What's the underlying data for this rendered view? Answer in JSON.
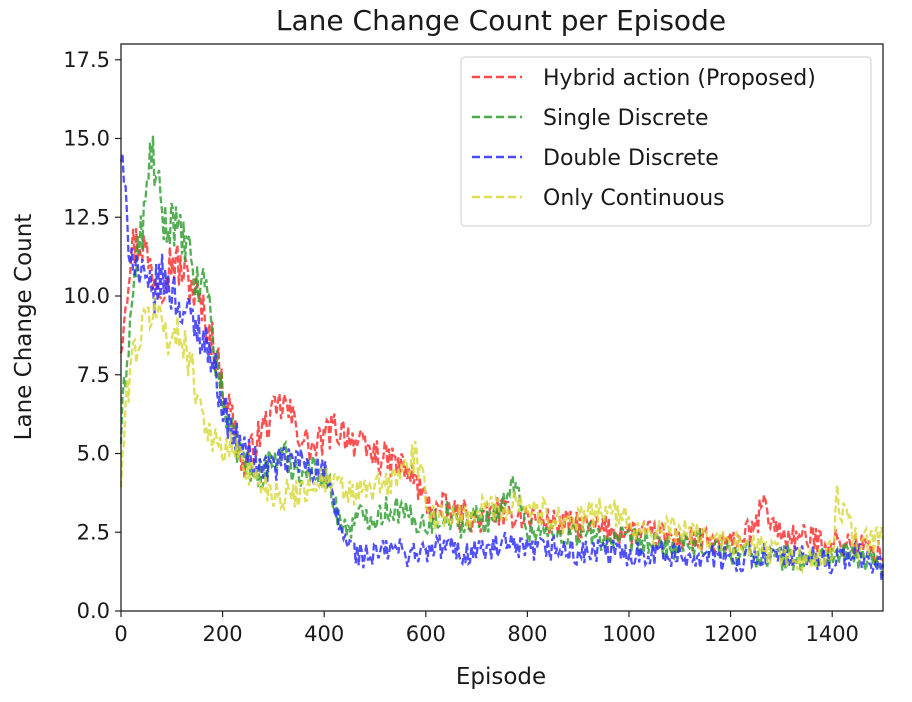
{
  "chart_data": {
    "type": "line",
    "title": "Lane Change Count per Episode",
    "xlabel": "Episode",
    "ylabel": "Lane Change Count",
    "xlim": [
      0,
      1500
    ],
    "ylim": [
      0,
      18
    ],
    "x_ticks": [
      0,
      200,
      400,
      600,
      800,
      1000,
      1200,
      1400
    ],
    "x_tick_labels": [
      "0",
      "200",
      "400",
      "600",
      "800",
      "1000",
      "1200",
      "1400"
    ],
    "y_ticks": [
      0,
      2.5,
      5,
      7.5,
      10,
      12.5,
      15,
      17.5
    ],
    "y_tick_labels": [
      "0.0",
      "2.5",
      "5.0",
      "7.5",
      "10.0",
      "12.5",
      "15.0",
      "17.5"
    ],
    "legend_position": "top-right",
    "line_style": "dashed",
    "series": [
      {
        "name": "Hybrid action (Proposed)",
        "color": "#ff2a2a",
        "x": [
          0,
          10,
          20,
          40,
          60,
          80,
          100,
          120,
          140,
          160,
          180,
          200,
          220,
          240,
          260,
          280,
          300,
          320,
          340,
          360,
          380,
          400,
          420,
          440,
          460,
          480,
          500,
          520,
          540,
          560,
          580,
          600,
          620,
          640,
          660,
          680,
          700,
          720,
          740,
          760,
          780,
          800,
          850,
          900,
          950,
          1000,
          1050,
          1100,
          1150,
          1200,
          1250,
          1260,
          1300,
          1350,
          1400,
          1450,
          1500
        ],
        "y": [
          8.5,
          10.2,
          11.5,
          11.8,
          10.8,
          10.5,
          11.2,
          10.8,
          10.3,
          9.5,
          8.6,
          7.2,
          6.1,
          4.5,
          5.2,
          5.8,
          6.2,
          6.6,
          6.0,
          5.4,
          5.1,
          5.5,
          5.8,
          5.7,
          5.4,
          5.1,
          5.0,
          4.8,
          4.7,
          4.5,
          4.1,
          3.5,
          3.2,
          3.3,
          3.0,
          3.1,
          2.8,
          3.0,
          3.2,
          3.0,
          3.1,
          3.0,
          2.8,
          2.7,
          2.6,
          2.5,
          2.4,
          2.3,
          2.2,
          2.1,
          2.6,
          3.4,
          2.4,
          2.3,
          2.2,
          2.1,
          1.8
        ]
      },
      {
        "name": "Single Discrete",
        "color": "#2e9e2e",
        "x": [
          0,
          10,
          20,
          30,
          50,
          60,
          70,
          90,
          100,
          110,
          130,
          150,
          170,
          180,
          200,
          220,
          240,
          260,
          280,
          300,
          320,
          340,
          360,
          380,
          400,
          420,
          440,
          460,
          480,
          500,
          520,
          540,
          560,
          580,
          600,
          620,
          640,
          660,
          680,
          700,
          720,
          740,
          760,
          780,
          790,
          800,
          850,
          900,
          950,
          1000,
          1050,
          1100,
          1150,
          1200,
          1250,
          1300,
          1350,
          1400,
          1450,
          1500
        ],
        "y": [
          5.5,
          7.8,
          9.5,
          11.0,
          13.0,
          14.8,
          13.5,
          12.0,
          12.8,
          12.0,
          11.5,
          10.2,
          10.6,
          8.6,
          6.8,
          5.4,
          5.0,
          4.2,
          4.5,
          4.8,
          4.9,
          4.6,
          4.4,
          4.5,
          4.4,
          3.4,
          2.6,
          2.8,
          3.1,
          3.0,
          3.2,
          3.3,
          3.0,
          2.9,
          2.8,
          2.9,
          3.1,
          2.8,
          2.7,
          3.0,
          2.9,
          3.2,
          3.4,
          4.4,
          3.0,
          2.6,
          2.4,
          2.5,
          2.3,
          2.2,
          2.1,
          2.0,
          2.1,
          1.9,
          1.8,
          1.7,
          1.6,
          1.8,
          1.7,
          1.5
        ]
      },
      {
        "name": "Double Discrete",
        "color": "#2a2aff",
        "x": [
          0,
          10,
          20,
          40,
          60,
          80,
          100,
          120,
          140,
          160,
          180,
          200,
          220,
          240,
          260,
          280,
          300,
          320,
          340,
          360,
          380,
          400,
          420,
          440,
          460,
          480,
          500,
          520,
          540,
          560,
          580,
          600,
          620,
          640,
          660,
          680,
          700,
          720,
          740,
          760,
          780,
          800,
          850,
          900,
          950,
          1000,
          1050,
          1100,
          1150,
          1200,
          1250,
          1300,
          1350,
          1400,
          1450,
          1500
        ],
        "y": [
          14.5,
          12.5,
          11.5,
          10.5,
          10.0,
          10.6,
          10.2,
          9.6,
          9.2,
          8.8,
          8.0,
          6.5,
          5.6,
          5.2,
          4.8,
          4.5,
          4.6,
          4.7,
          4.8,
          4.7,
          4.6,
          4.4,
          3.2,
          2.3,
          1.9,
          1.7,
          1.8,
          1.9,
          2.0,
          1.8,
          1.9,
          1.8,
          2.0,
          2.1,
          1.9,
          1.8,
          2.0,
          1.9,
          2.0,
          2.1,
          1.9,
          1.9,
          2.0,
          1.8,
          1.9,
          1.8,
          1.9,
          1.7,
          1.8,
          1.6,
          1.8,
          1.7,
          1.7,
          1.6,
          1.8,
          1.3
        ]
      },
      {
        "name": "Only Continuous",
        "color": "#d8d83a",
        "x": [
          0,
          10,
          20,
          40,
          60,
          80,
          100,
          120,
          140,
          160,
          180,
          200,
          220,
          240,
          260,
          280,
          300,
          320,
          340,
          360,
          380,
          400,
          420,
          440,
          460,
          480,
          500,
          520,
          540,
          560,
          580,
          600,
          620,
          640,
          660,
          680,
          700,
          720,
          740,
          760,
          780,
          800,
          850,
          900,
          950,
          1000,
          1050,
          1100,
          1150,
          1200,
          1250,
          1300,
          1350,
          1400,
          1410,
          1450,
          1500
        ],
        "y": [
          4.0,
          6.5,
          8.0,
          8.8,
          9.6,
          9.3,
          8.5,
          8.9,
          7.6,
          6.4,
          5.4,
          5.1,
          5.2,
          4.8,
          4.3,
          4.0,
          3.8,
          3.7,
          3.7,
          3.9,
          4.1,
          4.2,
          4.0,
          3.8,
          3.7,
          3.8,
          3.9,
          4.0,
          4.2,
          4.6,
          4.9,
          3.6,
          2.9,
          3.1,
          2.9,
          3.0,
          3.1,
          3.4,
          3.2,
          3.3,
          3.6,
          3.3,
          3.0,
          2.8,
          3.3,
          2.8,
          2.5,
          2.6,
          2.3,
          2.1,
          2.0,
          1.8,
          1.6,
          1.8,
          3.6,
          2.1,
          2.3
        ]
      }
    ]
  }
}
